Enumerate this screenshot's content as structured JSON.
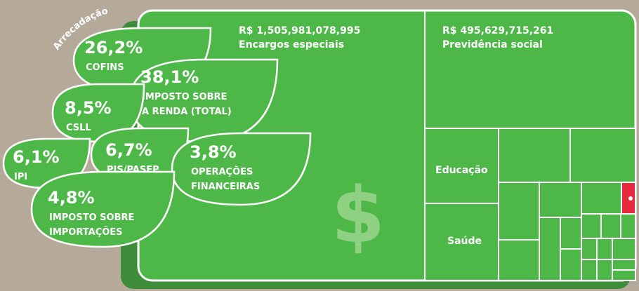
{
  "title": "Arrecadação",
  "taxes": [
    {
      "value": "26,2%",
      "lines": [
        "COFINS"
      ]
    },
    {
      "value": "38,1%",
      "lines": [
        "IMPOSTO SOBRE",
        "A RENDA (TOTAL)"
      ]
    },
    {
      "value": "8,5%",
      "lines": [
        "CSLL"
      ]
    },
    {
      "value": "6,1%",
      "lines": [
        "IPI"
      ]
    },
    {
      "value": "6,7%",
      "lines": [
        "PIS/PASEP"
      ]
    },
    {
      "value": "3,8%",
      "lines": [
        "OPERAÇÕES",
        "FINANCEIRAS"
      ]
    },
    {
      "value": "4,8%",
      "lines": [
        "IMPOSTO SOBRE",
        "IMPORTAÇÕES"
      ]
    }
  ],
  "spending": [
    {
      "amount": "R$ 1,505,981,078,995",
      "label": "Encargos especiais"
    },
    {
      "amount": "R$ 495,629,715,261",
      "label": "Previdência social"
    },
    {
      "label": "Educação"
    },
    {
      "label": "Saúde"
    }
  ],
  "symbol": "$"
}
